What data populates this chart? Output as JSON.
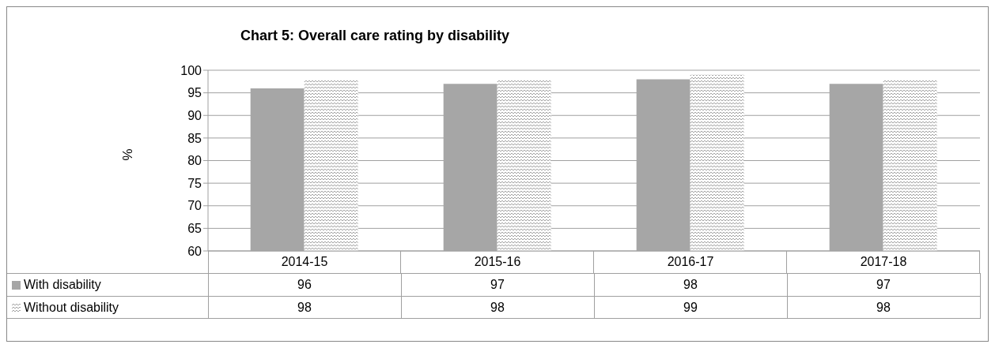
{
  "chart_data": {
    "type": "bar",
    "title": "Chart 5: Overall care rating by disability",
    "ylabel": "%",
    "categories": [
      "2014-15",
      "2015-16",
      "2016-17",
      "2017-18"
    ],
    "series": [
      {
        "name": "With disability",
        "color": "#a6a6a6",
        "values": [
          96,
          97,
          98,
          97
        ]
      },
      {
        "name": "Without disability",
        "color": "#8c8c8c",
        "values": [
          98,
          98,
          99,
          98
        ]
      }
    ],
    "ylim": [
      60,
      100
    ],
    "yticks": [
      60,
      65,
      70,
      75,
      80,
      85,
      90,
      95,
      100
    ],
    "grid": "y",
    "legend": "bottom left",
    "data_labels": true
  }
}
